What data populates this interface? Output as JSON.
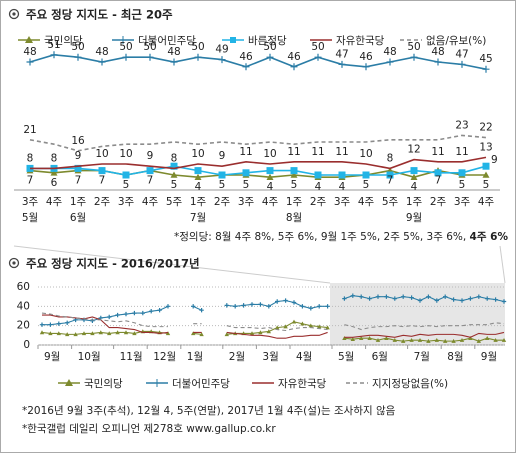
{
  "chart_data": [
    {
      "type": "line",
      "title": "주요 정당 지지도 - 최근 20주",
      "categories": [
        "3주",
        "4주",
        "1주",
        "2주",
        "3주",
        "4주",
        "5주",
        "1주",
        "2주",
        "3주",
        "4주",
        "1주",
        "2주",
        "3주",
        "4주",
        "5주",
        "1주",
        "2주",
        "3주",
        "4주"
      ],
      "months": [
        "5월",
        null,
        "6월",
        null,
        null,
        null,
        null,
        "7월",
        null,
        null,
        null,
        "8월",
        null,
        null,
        null,
        null,
        "9월",
        null,
        null,
        null
      ],
      "series": [
        {
          "name": "국민의당",
          "color": "#7d8a2e",
          "marker": "triangle",
          "label_position": "below",
          "values": [
            7,
            6,
            7,
            7,
            5,
            7,
            5,
            4,
            5,
            5,
            4,
            5,
            4,
            4,
            5,
            7,
            4,
            7,
            5,
            5
          ]
        },
        {
          "name": "더불어민주당",
          "color": "#2b7da6",
          "marker": "plus",
          "label_position": "above",
          "values": [
            48,
            51,
            50,
            48,
            50,
            50,
            48,
            50,
            49,
            46,
            50,
            46,
            50,
            47,
            46,
            48,
            50,
            48,
            47,
            45
          ]
        },
        {
          "name": "바른정당",
          "color": "#22b4e6",
          "marker": "square",
          "label_position": "right",
          "values": [
            8,
            8,
            8,
            7,
            5,
            7,
            9,
            7,
            5,
            6,
            7,
            7,
            5,
            5,
            5,
            5,
            7,
            6,
            6,
            9
          ],
          "value_labels": [
            null,
            null,
            null,
            null,
            null,
            null,
            null,
            null,
            null,
            null,
            null,
            null,
            null,
            null,
            null,
            null,
            null,
            null,
            null,
            "9"
          ]
        },
        {
          "name": "자유한국당",
          "color": "#9a2e2e",
          "marker": "none",
          "label_position": "above",
          "values": [
            8,
            8,
            9,
            10,
            10,
            9,
            8,
            10,
            9,
            11,
            10,
            11,
            11,
            11,
            10,
            8,
            12,
            11,
            11,
            13
          ]
        },
        {
          "name": "없음/유보(%)",
          "color": "#8c8c8c",
          "marker": "none",
          "line_style": "dashed",
          "label_position": "above",
          "values": [
            21,
            19,
            16,
            18,
            19,
            19,
            20,
            19,
            20,
            19,
            20,
            19,
            20,
            20,
            20,
            21,
            21,
            21,
            23,
            22
          ],
          "value_labels": [
            "21",
            null,
            "16",
            null,
            null,
            null,
            null,
            null,
            null,
            null,
            null,
            null,
            null,
            null,
            null,
            null,
            null,
            null,
            "23",
            "22"
          ]
        }
      ],
      "note": "*정의당: 8월 4주 8%, 5주 6%, 9월 1주 5%, 2주 5%, 3주 6%,",
      "note_emphasis": "4주 6%"
    },
    {
      "type": "line",
      "title": "주요 정당 지지도 - 2016/2017년",
      "categories": [
        "9월",
        null,
        null,
        null,
        "10월",
        null,
        null,
        null,
        null,
        "11월",
        null,
        null,
        null,
        "12월",
        null,
        null,
        null,
        "1월",
        null,
        null,
        null,
        null,
        "2월",
        null,
        null,
        null,
        "3월",
        null,
        null,
        null,
        "4월",
        null,
        null,
        null,
        null,
        "5월",
        null,
        null,
        null,
        "6월",
        null,
        null,
        null,
        null,
        "7월",
        null,
        null,
        null,
        "8월",
        null,
        null,
        null,
        "9월",
        null,
        null,
        null
      ],
      "ylim": [
        0,
        60
      ],
      "yticks": [
        0,
        20,
        40,
        60
      ],
      "grid": true,
      "series": [
        {
          "name": "국민의당",
          "color": "#7d8a2e",
          "marker": "triangle",
          "values": [
            13,
            12,
            12,
            11,
            11,
            12,
            12,
            13,
            12,
            13,
            13,
            12,
            14,
            14,
            13,
            12,
            null,
            null,
            12,
            11,
            null,
            null,
            11,
            12,
            12,
            12,
            13,
            14,
            18,
            19,
            24,
            22,
            20,
            19,
            18,
            null,
            7,
            6,
            7,
            7,
            5,
            7,
            5,
            4,
            5,
            5,
            4,
            5,
            4,
            4,
            5,
            7,
            4,
            7,
            5,
            5
          ]
        },
        {
          "name": "더불어민주당",
          "color": "#2b7da6",
          "marker": "plus",
          "values": [
            21,
            21,
            22,
            23,
            26,
            26,
            25,
            28,
            29,
            31,
            32,
            33,
            33,
            35,
            36,
            40,
            null,
            null,
            40,
            36,
            null,
            null,
            41,
            40,
            41,
            42,
            42,
            40,
            45,
            46,
            44,
            40,
            38,
            40,
            40,
            null,
            48,
            51,
            50,
            48,
            50,
            50,
            48,
            50,
            49,
            46,
            50,
            46,
            50,
            47,
            46,
            48,
            50,
            48,
            47,
            45
          ]
        },
        {
          "name": "자유한국당",
          "color": "#9a2e2e",
          "marker": "none",
          "values": [
            31,
            31,
            29,
            29,
            28,
            27,
            29,
            26,
            18,
            18,
            17,
            16,
            13,
            13,
            12,
            13,
            null,
            null,
            13,
            13,
            null,
            null,
            13,
            12,
            11,
            10,
            10,
            9,
            7,
            7,
            9,
            9,
            10,
            10,
            13,
            null,
            8,
            8,
            9,
            10,
            10,
            9,
            8,
            10,
            9,
            11,
            10,
            11,
            11,
            11,
            10,
            8,
            12,
            11,
            11,
            13
          ]
        },
        {
          "name": "지지정당없음(%)",
          "color": "#8c8c8c",
          "marker": "none",
          "line_style": "dashed",
          "values": [
            33,
            32,
            30,
            29,
            28,
            27,
            26,
            26,
            25,
            24,
            25,
            23,
            20,
            19,
            19,
            19,
            null,
            null,
            22,
            22,
            null,
            null,
            20,
            18,
            18,
            18,
            17,
            18,
            16,
            15,
            17,
            18,
            18,
            17,
            16,
            null,
            21,
            19,
            16,
            18,
            19,
            19,
            20,
            19,
            20,
            19,
            20,
            19,
            20,
            20,
            20,
            21,
            21,
            21,
            23,
            22
          ]
        }
      ],
      "notes": [
        "*2016년 9월 3주(추석), 12월 4, 5주(연말), 2017년 1월 4주(설)는 조사하지 않음",
        "*한국갤럽 데일리 오피니언 제278호 www.gallup.co.kr"
      ]
    }
  ]
}
